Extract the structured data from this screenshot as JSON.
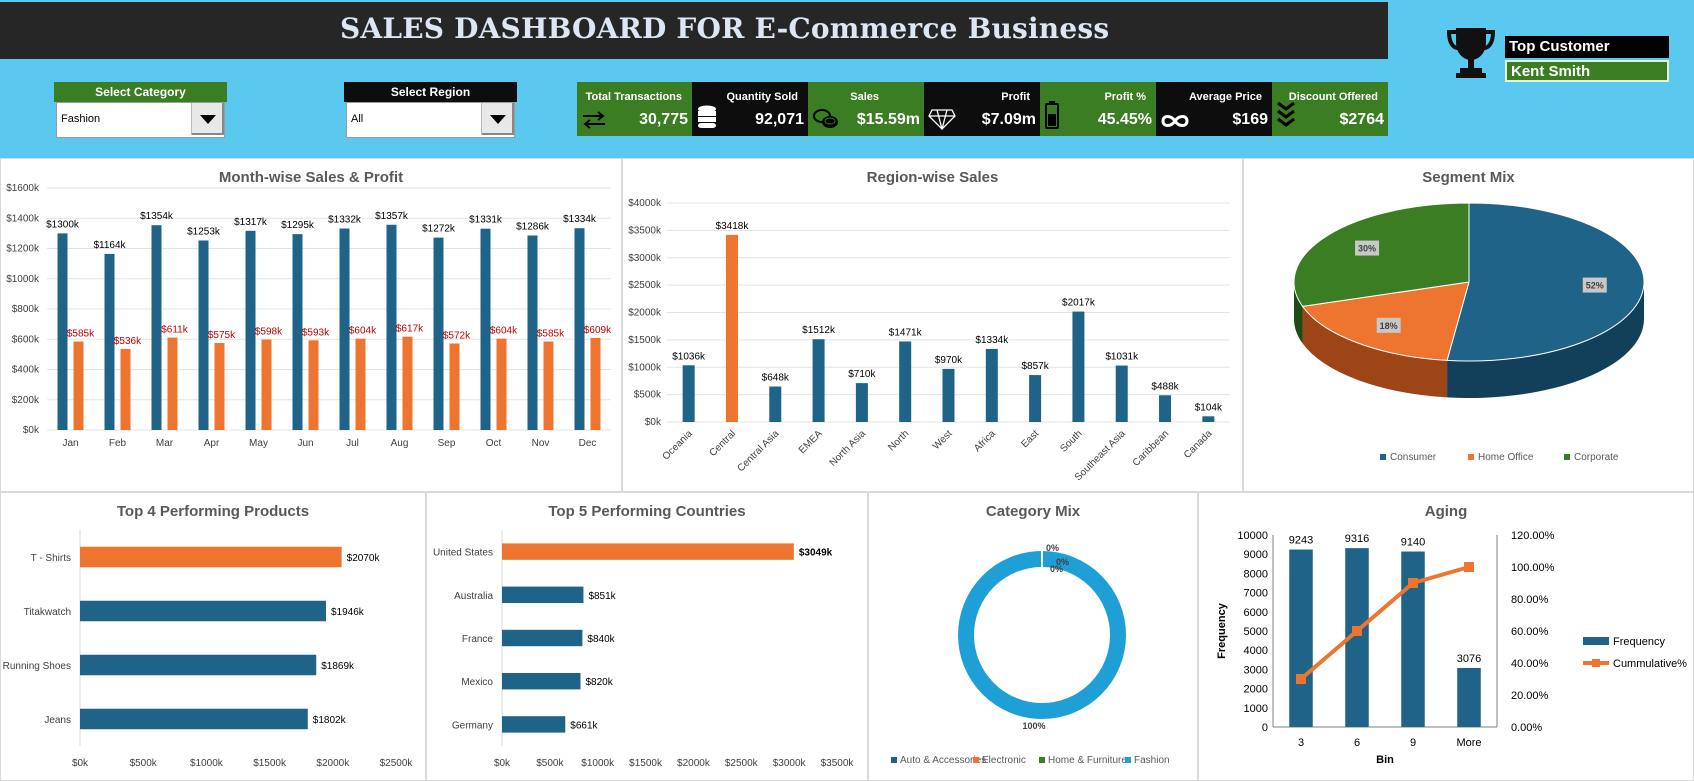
{
  "header": {
    "title": "SALES DASHBOARD FOR E-Commerce Business"
  },
  "filters": {
    "category": {
      "label": "Select Category",
      "value": "Fashion"
    },
    "region": {
      "label": "Select Region",
      "value": "All"
    }
  },
  "kpis": [
    {
      "label": "Total Transactions",
      "value": "30,775",
      "icon": "transfer-arrows-icon"
    },
    {
      "label": "Quantity Sold",
      "value": "92,071",
      "icon": "database-icon"
    },
    {
      "label": "Sales",
      "value": "$15.59m",
      "icon": "coins-icon"
    },
    {
      "label": "Profit",
      "value": "$7.09m",
      "icon": "diamond-icon"
    },
    {
      "label": "Profit %",
      "value": "45.45%",
      "icon": "battery-icon"
    },
    {
      "label": "Average Price",
      "value": "$169",
      "icon": "infinity-icon"
    },
    {
      "label": "Discount Offered",
      "value": "$2764",
      "icon": "chevrons-down-icon"
    }
  ],
  "top_customer": {
    "label": "Top Customer",
    "value": "Kent Smith"
  },
  "colors": {
    "blue": "#1f6388",
    "orange": "#ee7530",
    "green": "#3a7d22",
    "red_label": "#c00000",
    "cyan": "#1ea0d6"
  },
  "chart_data": [
    {
      "id": "monthly",
      "type": "bar",
      "title": "Month-wise Sales & Profit",
      "categories": [
        "Jan",
        "Feb",
        "Mar",
        "Apr",
        "May",
        "Jun",
        "Jul",
        "Aug",
        "Sep",
        "Oct",
        "Nov",
        "Dec"
      ],
      "series": [
        {
          "values": [
            1300,
            1164,
            1354,
            1253,
            1317,
            1295,
            1332,
            1357,
            1272,
            1331,
            1286,
            1334
          ],
          "labels": [
            "$1300k",
            "$1164k",
            "$1354k",
            "$1253k",
            "$1317k",
            "$1295k",
            "$1332k",
            "$1357k",
            "$1272k",
            "$1331k",
            "$1286k",
            "$1334k"
          ]
        },
        {
          "values": [
            585,
            536,
            611,
            575,
            598,
            593,
            604,
            617,
            572,
            604,
            585,
            609
          ],
          "labels": [
            "$585k",
            "$536k",
            "$611k",
            "$575k",
            "$598k",
            "$593k",
            "$604k",
            "$617k",
            "$572k",
            "$604k",
            "$585k",
            "$609k"
          ]
        }
      ],
      "yticks": [
        "$0k",
        "$200k",
        "$400k",
        "$600k",
        "$800k",
        "$1000k",
        "$1200k",
        "$1400k",
        "$1600k"
      ],
      "ylim": [
        0,
        1600
      ]
    },
    {
      "id": "region",
      "type": "bar",
      "title": "Region-wise Sales",
      "categories": [
        "Oceania",
        "Central",
        "Central Asia",
        "EMEA",
        "North Asia",
        "North",
        "West",
        "Africa",
        "East",
        "South",
        "Southeast Asia",
        "Caribbean",
        "Canada"
      ],
      "values": [
        1036,
        3418,
        648,
        1512,
        710,
        1471,
        970,
        1334,
        857,
        2017,
        1031,
        488,
        104
      ],
      "labels": [
        "$1036k",
        "$3418k",
        "$648k",
        "$1512k",
        "$710k",
        "$1471k",
        "$970k",
        "$1334k",
        "$857k",
        "$2017k",
        "$1031k",
        "$488k",
        "$104k"
      ],
      "yticks": [
        "$0k",
        "$500k",
        "$1000k",
        "$1500k",
        "$2000k",
        "$2500k",
        "$3000k",
        "$3500k",
        "$4000k"
      ],
      "ylim": [
        0,
        4000
      ]
    },
    {
      "id": "segment",
      "type": "pie",
      "title": "Segment Mix",
      "categories": [
        "Consumer",
        "Home Office",
        "Corporate"
      ],
      "values": [
        52,
        18,
        30
      ],
      "labels": [
        "52%",
        "18%",
        "30%"
      ]
    },
    {
      "id": "products",
      "type": "bar",
      "title": "Top 4 Performing Products",
      "categories": [
        "T - Shirts",
        "Titakwatch",
        "Running Shoes",
        "Jeans"
      ],
      "values": [
        2070,
        1946,
        1869,
        1802
      ],
      "labels": [
        "$2070k",
        "$1946k",
        "$1869k",
        "$1802k"
      ],
      "xticks": [
        "$0k",
        "$500k",
        "$1000k",
        "$1500k",
        "$2000k",
        "$2500k"
      ],
      "xlim": [
        0,
        2500
      ]
    },
    {
      "id": "countries",
      "type": "bar",
      "title": "Top 5 Performing Countries",
      "categories": [
        "United States",
        "Australia",
        "France",
        "Mexico",
        "Germany"
      ],
      "values": [
        3049,
        851,
        840,
        820,
        661
      ],
      "labels": [
        "$3049k",
        "$851k",
        "$840k",
        "$820k",
        "$661k"
      ],
      "xticks": [
        "$0k",
        "$500k",
        "$1000k",
        "$1500k",
        "$2000k",
        "$2500k",
        "$3000k",
        "$3500k"
      ],
      "xlim": [
        0,
        3500
      ]
    },
    {
      "id": "category",
      "type": "pie",
      "title": "Category Mix",
      "categories": [
        "Auto & Accessories",
        "Electronic",
        "Home & Furniture",
        "Fashion"
      ],
      "values": [
        0,
        0,
        0,
        100
      ],
      "labels": [
        "0%",
        "0%",
        "0%",
        "100%"
      ]
    },
    {
      "id": "aging",
      "type": "bar",
      "title": "Aging",
      "xlabel": "Bin",
      "ylabel": "Frequency",
      "categories": [
        "3",
        "6",
        "9",
        "More"
      ],
      "series": [
        {
          "name": "Frequency",
          "values": [
            9243,
            9316,
            9140,
            3076
          ],
          "labels": [
            "9243",
            "9316",
            "9140",
            "3076"
          ]
        },
        {
          "name": "Cummulative%",
          "values": [
            30,
            60,
            90,
            100
          ]
        }
      ],
      "yticks": [
        "0",
        "1000",
        "2000",
        "3000",
        "4000",
        "5000",
        "6000",
        "7000",
        "8000",
        "9000",
        "10000"
      ],
      "ylim": [
        0,
        10000
      ],
      "y2ticks": [
        "0.00%",
        "20.00%",
        "40.00%",
        "60.00%",
        "80.00%",
        "100.00%",
        "120.00%"
      ],
      "y2lim": [
        0,
        120
      ]
    }
  ]
}
